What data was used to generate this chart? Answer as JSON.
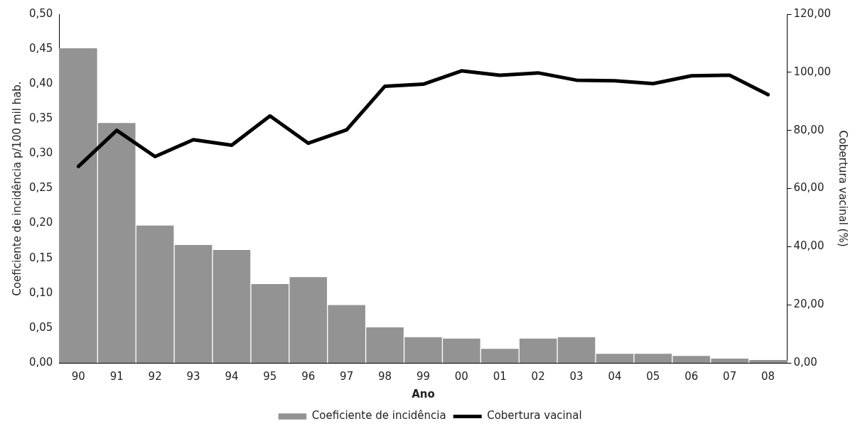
{
  "chart_data": {
    "type": "bar",
    "xlabel": "Ano",
    "ylabel": "Coeficiente de incidência p/100 mil hab.",
    "y2label": "Cobertura vacinal (%)",
    "categories": [
      "90",
      "91",
      "92",
      "93",
      "94",
      "95",
      "96",
      "97",
      "98",
      "99",
      "00",
      "01",
      "02",
      "03",
      "04",
      "05",
      "06",
      "07",
      "08"
    ],
    "series": [
      {
        "name": "Coeficiente de incidência",
        "color": "#939393",
        "values": [
          0.451,
          0.344,
          0.197,
          0.169,
          0.162,
          0.113,
          0.123,
          0.083,
          0.051,
          0.037,
          0.035,
          0.02,
          0.035,
          0.037,
          0.013,
          0.013,
          0.01,
          0.006,
          0.004
        ]
      },
      {
        "name": "Cobertura vacinal",
        "type": "line",
        "axis": "y2",
        "color": "#000000",
        "values": [
          67.6,
          80.0,
          71.0,
          76.8,
          74.9,
          85.0,
          75.6,
          80.2,
          95.2,
          95.9,
          100.5,
          99.0,
          99.8,
          97.3,
          97.1,
          96.1,
          98.8,
          99.0,
          92.3
        ]
      }
    ],
    "ylim": [
      0,
      0.5
    ],
    "yticks": [
      {
        "value": 0,
        "label": "0,00"
      },
      {
        "value": 0.05,
        "label": "0,05"
      },
      {
        "value": 0.1,
        "label": "0,10"
      },
      {
        "value": 0.15,
        "label": "0,15"
      },
      {
        "value": 0.2,
        "label": "0,20"
      },
      {
        "value": 0.25,
        "label": "0,25"
      },
      {
        "value": 0.3,
        "label": "0,30"
      },
      {
        "value": 0.35,
        "label": "0,35"
      },
      {
        "value": 0.4,
        "label": "0,40"
      },
      {
        "value": 0.45,
        "label": "0,45"
      },
      {
        "value": 0.5,
        "label": "0,50"
      }
    ],
    "y2lim": [
      0,
      120
    ],
    "y2ticks": [
      {
        "value": 0,
        "label": "0,00"
      },
      {
        "value": 20,
        "label": "20,00"
      },
      {
        "value": 40,
        "label": "40,00"
      },
      {
        "value": 60,
        "label": "60,00"
      },
      {
        "value": 80,
        "label": "80,00"
      },
      {
        "value": 100,
        "label": "100,00"
      },
      {
        "value": 120,
        "label": "120,00"
      }
    ],
    "grid": false,
    "legend": "bottom",
    "marker": "none",
    "line_style": "solid"
  }
}
